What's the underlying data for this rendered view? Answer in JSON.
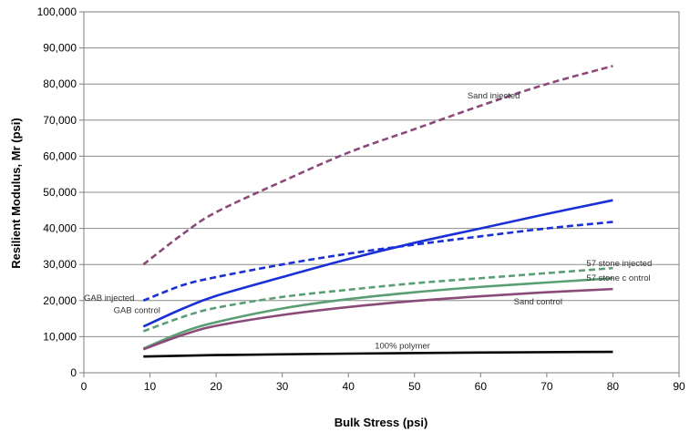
{
  "chart_data": {
    "type": "line",
    "title": "",
    "xlabel": "Bulk Stress (psi)",
    "ylabel": "Resilient Modulus, Mr (psi)",
    "xlim": [
      0,
      90
    ],
    "ylim": [
      0,
      100000
    ],
    "xticks": [
      0,
      10,
      20,
      30,
      40,
      50,
      60,
      70,
      80,
      90
    ],
    "yticks": [
      0,
      10000,
      20000,
      30000,
      40000,
      50000,
      60000,
      70000,
      80000,
      90000,
      100000
    ],
    "xtick_labels": [
      "0",
      "10",
      "20",
      "30",
      "40",
      "50",
      "60",
      "70",
      "80",
      "90"
    ],
    "ytick_labels": [
      "0",
      "10,000",
      "20,000",
      "30,000",
      "40,000",
      "50,000",
      "60,000",
      "70,000",
      "80,000",
      "90,000",
      "100,000"
    ],
    "grid": {
      "horizontal": true,
      "vertical": false
    },
    "legend": "none",
    "series": [
      {
        "name": "Sand injected",
        "color": "#8B4A7A",
        "dash": true,
        "x": [
          9,
          15,
          20,
          30,
          40,
          50,
          60,
          70,
          80
        ],
        "y": [
          30000,
          38500,
          44500,
          53000,
          61000,
          67500,
          74000,
          80000,
          85000
        ]
      },
      {
        "name": "",
        "color": "#1a2fd6",
        "dash": false,
        "x": [
          9,
          15,
          20,
          30,
          40,
          50,
          60,
          70,
          80
        ],
        "y": [
          12800,
          17800,
          21300,
          26500,
          31500,
          36000,
          40000,
          44000,
          47800
        ]
      },
      {
        "name": "GAB injected",
        "color": "#1a2fd6",
        "dash": true,
        "x": [
          9,
          15,
          20,
          30,
          40,
          50,
          60,
          70,
          80
        ],
        "y": [
          20000,
          24300,
          26500,
          30000,
          33000,
          35500,
          37800,
          40000,
          41800
        ]
      },
      {
        "name": "57 stone injected",
        "color": "#5a9e73",
        "dash": true,
        "x": [
          9,
          15,
          20,
          30,
          40,
          50,
          60,
          70,
          80
        ],
        "y": [
          11500,
          15500,
          18000,
          21000,
          23000,
          24800,
          26200,
          27600,
          29000
        ]
      },
      {
        "name": "GAB control",
        "color": "#5a9e73",
        "dash": false,
        "x": [
          9,
          15,
          20,
          30,
          40,
          50,
          60,
          70,
          80
        ],
        "y": [
          6700,
          11300,
          14000,
          17800,
          20400,
          22300,
          23800,
          25000,
          26200
        ]
      },
      {
        "name": "Sand control",
        "color": "#8B4A7A",
        "dash": false,
        "x": [
          9,
          15,
          20,
          30,
          40,
          50,
          60,
          70,
          80
        ],
        "y": [
          6500,
          10500,
          13000,
          16000,
          18200,
          19900,
          21200,
          22300,
          23200
        ]
      },
      {
        "name": "100% polymer",
        "color": "#000000",
        "dash": false,
        "x": [
          9,
          20,
          40,
          60,
          80
        ],
        "y": [
          4500,
          4900,
          5300,
          5600,
          5800
        ]
      }
    ],
    "annotations": [
      {
        "text": "Sand injected",
        "x": 58,
        "y": 76000
      },
      {
        "text": "57 stone injected",
        "x": 76,
        "y": 29500
      },
      {
        "text": "57 stone c ontrol",
        "x": 76,
        "y": 25500
      },
      {
        "text": "GAB injected",
        "x": 0,
        "y": 20000
      },
      {
        "text": "GAB control",
        "x": 4.5,
        "y": 16500
      },
      {
        "text": "Sand control",
        "x": 65,
        "y": 19000
      },
      {
        "text": "100% polymer",
        "x": 44,
        "y": 6700
      }
    ]
  }
}
